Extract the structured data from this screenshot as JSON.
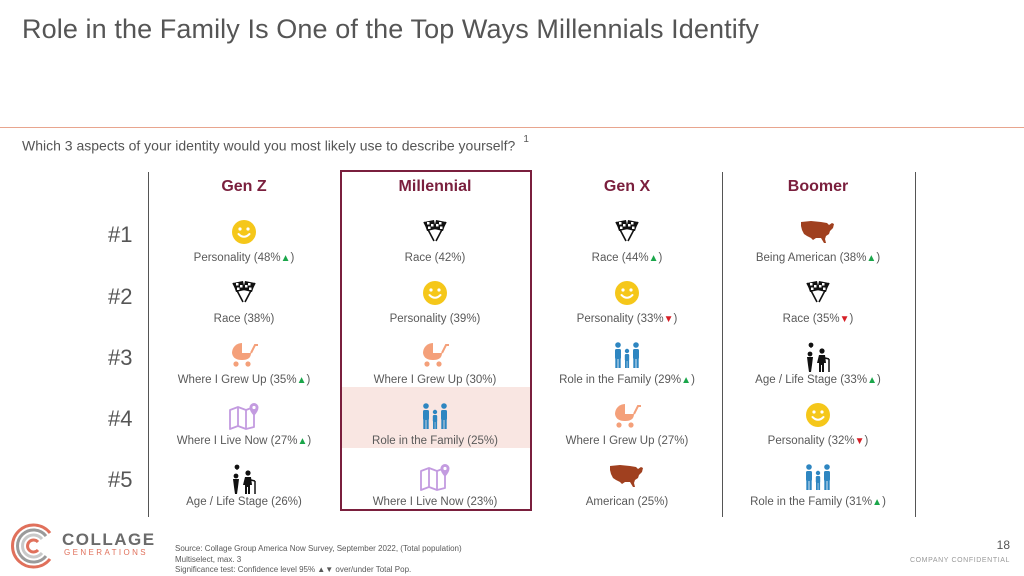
{
  "title": "Role in the Family Is One of the Top Ways Millennials Identify",
  "question": "Which 3 aspects of your identity would you most likely use to describe yourself?",
  "question_footnote": "1",
  "columns": [
    "Gen Z",
    "Millennial",
    "Gen X",
    "Boomer"
  ],
  "ranks": [
    "#1",
    "#2",
    "#3",
    "#4",
    "#5"
  ],
  "colors": {
    "accent": "#7a1f3d",
    "up": "#1aa64a",
    "down": "#d61f26",
    "smiley": "#f5c71a",
    "stroller": "#f4a07a",
    "family": "#2e86c1",
    "map": "#c39be0",
    "usa": "#a0401f"
  },
  "cells": [
    [
      {
        "icon": "smiley-icon",
        "label": "Personality (48%",
        "sig": "up",
        "close": ")"
      },
      {
        "icon": "racing-flags-icon",
        "label": "Race (38%)",
        "sig": "",
        "close": ""
      },
      {
        "icon": "stroller-icon",
        "label": "Where I Grew Up (35%",
        "sig": "up",
        "close": ")"
      },
      {
        "icon": "map-pin-icon",
        "label": "Where I Live Now (27%",
        "sig": "up",
        "close": ")"
      },
      {
        "icon": "elderly-child-icon",
        "label": "Age / Life Stage (26%)",
        "sig": "",
        "close": ""
      }
    ],
    [
      {
        "icon": "racing-flags-icon",
        "label": "Race (42%)",
        "sig": "",
        "close": ""
      },
      {
        "icon": "smiley-icon",
        "label": "Personality (39%)",
        "sig": "",
        "close": ""
      },
      {
        "icon": "stroller-icon",
        "label": "Where I Grew Up (30%)",
        "sig": "",
        "close": ""
      },
      {
        "icon": "family-icon",
        "label": "Role in the Family (25%)",
        "sig": "",
        "close": ""
      },
      {
        "icon": "map-pin-icon",
        "label": "Where I Live Now (23%)",
        "sig": "",
        "close": ""
      }
    ],
    [
      {
        "icon": "racing-flags-icon",
        "label": "Race (44%",
        "sig": "up",
        "close": ")"
      },
      {
        "icon": "smiley-icon",
        "label": "Personality (33%",
        "sig": "down",
        "close": ")"
      },
      {
        "icon": "family-icon",
        "label": "Role in the Family (29%",
        "sig": "up",
        "close": ")"
      },
      {
        "icon": "stroller-icon",
        "label": "Where I Grew Up (27%)",
        "sig": "",
        "close": ""
      },
      {
        "icon": "usa-map-icon",
        "label": "American (25%)",
        "sig": "",
        "close": ""
      }
    ],
    [
      {
        "icon": "usa-map-icon",
        "label": "Being American (38%",
        "sig": "up",
        "close": ")"
      },
      {
        "icon": "racing-flags-icon",
        "label": "Race (35%",
        "sig": "down",
        "close": ")"
      },
      {
        "icon": "elderly-child-icon",
        "label": "Age / Life Stage (33%",
        "sig": "up",
        "close": ")"
      },
      {
        "icon": "smiley-icon",
        "label": "Personality (32%",
        "sig": "down",
        "close": ")"
      },
      {
        "icon": "family-icon",
        "label": "Role in the Family (31%",
        "sig": "up",
        "close": ")"
      }
    ]
  ],
  "logo": {
    "line1": "COLLAGE",
    "line2": "GENERATIONS"
  },
  "source": [
    "Source: Collage Group America Now Survey, September 2022, (Total population)",
    "Multiselect, max. 3",
    "Significance test: Confidence level 95% ▲▼ over/under Total Pop."
  ],
  "page_number": "18",
  "confidential": "COMPANY CONFIDENTIAL"
}
